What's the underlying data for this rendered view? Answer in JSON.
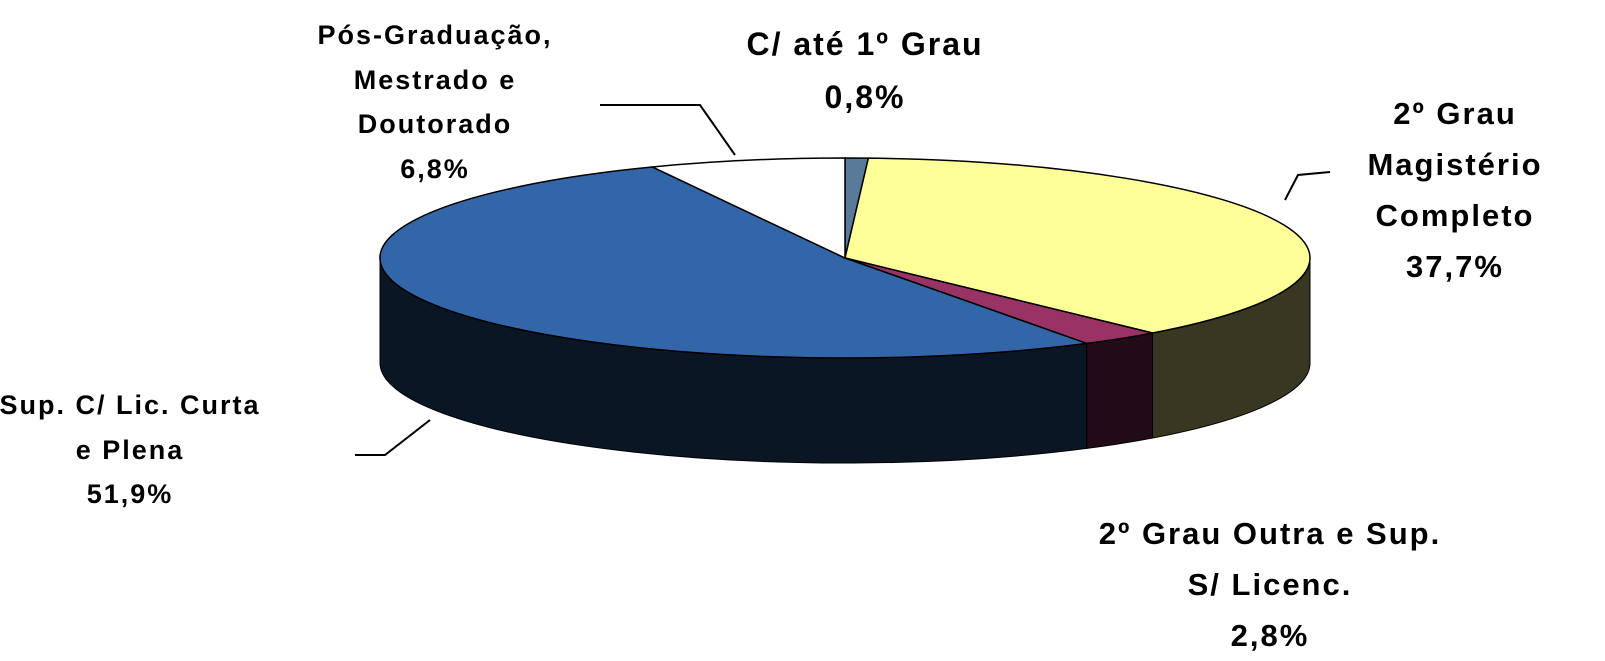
{
  "chart_data": {
    "type": "pie",
    "categories": [
      "C/ até 1º Grau",
      "2º Grau Magistério Completo",
      "2º Grau Outra e Sup. S/ Licenc.",
      "Sup. C/ Lic. Curta e Plena",
      "Pós-Graduação, Mestrado e Doutorado"
    ],
    "values": [
      0.8,
      37.7,
      2.8,
      51.9,
      6.8
    ],
    "value_labels": [
      "0,8%",
      "37,7%",
      "2,8%",
      "51,9%",
      "6,8%"
    ],
    "colors": [
      "#5a7a9a",
      "#ffff99",
      "#993366",
      "#3366a8",
      "#ffffff"
    ]
  }
}
